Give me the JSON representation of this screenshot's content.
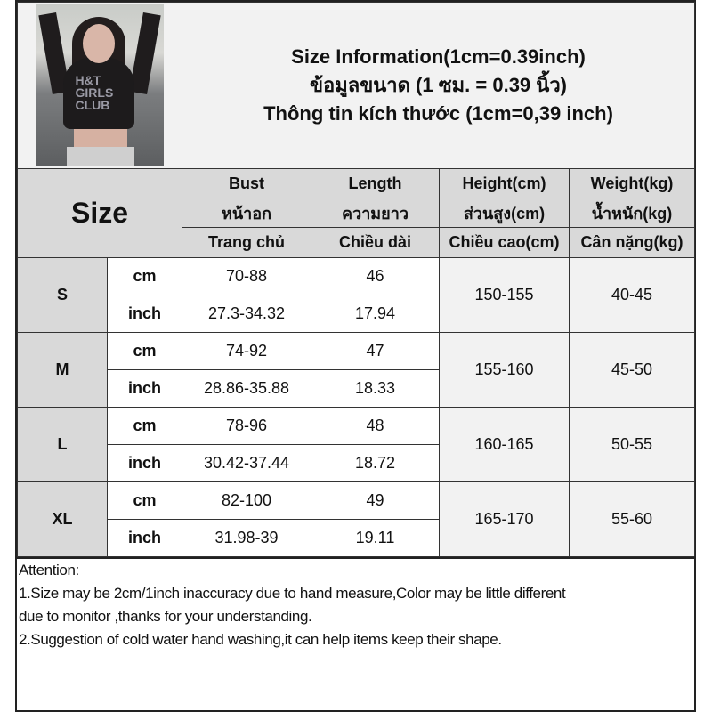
{
  "header": {
    "title_en": "Size Information(1cm=0.39inch)",
    "title_th": "ข้อมูลขนาด (1 ซม. = 0.39 นิ้ว)",
    "title_vi": "Thông tin kích thước (1cm=0,39 inch)"
  },
  "photo": {
    "text": "H&T GIRLS CLUB"
  },
  "table": {
    "size_label": "Size",
    "columns": [
      {
        "en": "Bust",
        "th": "หน้าอก",
        "vi": "Trang chủ"
      },
      {
        "en": "Length",
        "th": "ความยาว",
        "vi": "Chiều dài"
      },
      {
        "en": "Height(cm)",
        "th": "ส่วนสูง(cm)",
        "vi": "Chiều cao(cm)"
      },
      {
        "en": "Weight(kg)",
        "th": "น้ำหนัก(kg)",
        "vi": "Cân nặng(kg)"
      }
    ],
    "rows": [
      {
        "size": "S",
        "cm_label": "cm",
        "inch_label": "inch",
        "bust_cm": "70-88",
        "length_cm": "46",
        "bust_inch": "27.3-34.32",
        "length_inch": "17.94",
        "height": "150-155",
        "weight": "40-45"
      },
      {
        "size": "M",
        "cm_label": "cm",
        "inch_label": "inch",
        "bust_cm": "74-92",
        "length_cm": "47",
        "bust_inch": "28.86-35.88",
        "length_inch": "18.33",
        "height": "155-160",
        "weight": "45-50"
      },
      {
        "size": "L",
        "cm_label": "cm",
        "inch_label": "inch",
        "bust_cm": "78-96",
        "length_cm": "48",
        "bust_inch": "30.42-37.44",
        "length_inch": "18.72",
        "height": "160-165",
        "weight": "50-55"
      },
      {
        "size": "XL",
        "cm_label": "cm",
        "inch_label": "inch",
        "bust_cm": "82-100",
        "length_cm": "49",
        "bust_inch": "31.98-39",
        "length_inch": "19.11",
        "height": "165-170",
        "weight": "55-60"
      }
    ]
  },
  "notes": {
    "heading": "Attention:",
    "line1": "1.Size may be 2cm/1inch inaccuracy due to hand measure,Color may be little different",
    "line1b": "due to monitor ,thanks for your understanding.",
    "line2": "2.Suggestion of cold water hand washing,it can help items keep their shape."
  }
}
